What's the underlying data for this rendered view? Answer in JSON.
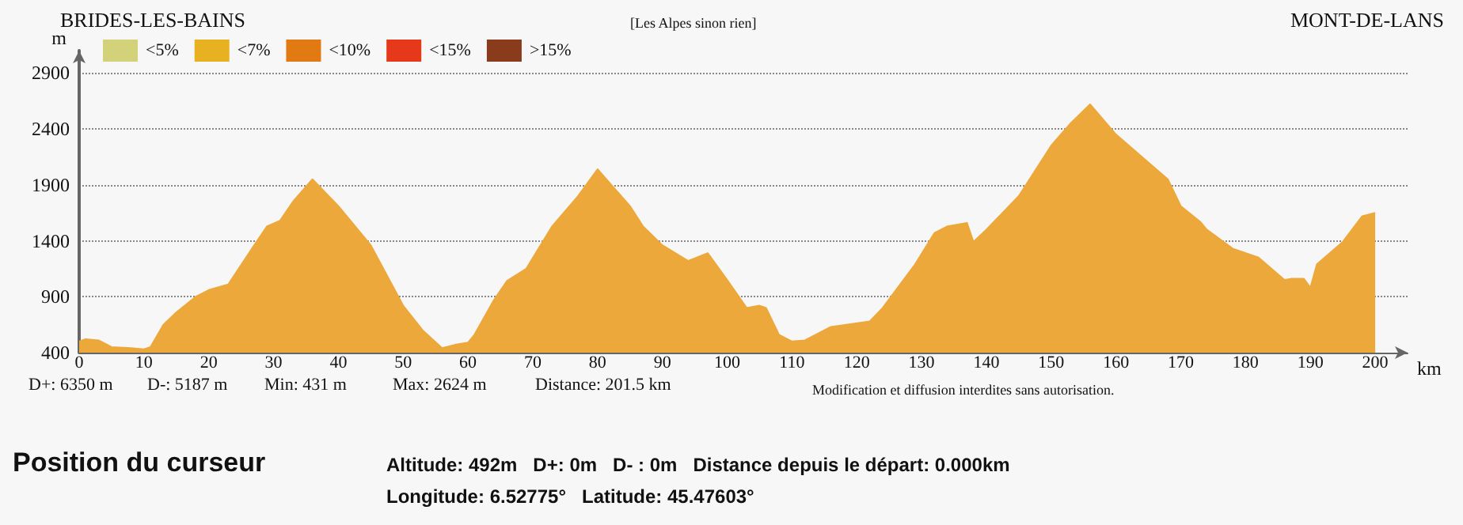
{
  "chart_data": {
    "type": "area",
    "annotations": [
      "BRIDES-LES-BAINS",
      "[Les Alpes sinon rien]",
      "MONT-DE-LANS",
      "D+: 6350 m",
      "D-: 5187 m",
      "Min: 431 m",
      "Max: 2624 m",
      "Distance: 201.5 km",
      "Modification et diffusion interdites sans autorisation.",
      "Position du curseur",
      "Altitude: 492m   D+: 0m   D- : 0m   Distance depuis le départ: 0.000km",
      "Longitude: 6.52775°   Latitude: 45.47603°"
    ],
    "xlabel": "km",
    "ylabel": "m",
    "xlim": [
      0,
      205
    ],
    "xticks": [
      0,
      10,
      20,
      30,
      40,
      50,
      60,
      70,
      80,
      90,
      100,
      110,
      120,
      130,
      140,
      150,
      160,
      170,
      180,
      190,
      200
    ],
    "ylim": [
      400,
      3100
    ],
    "yticks": [
      400,
      900,
      1400,
      1900,
      2400,
      2900
    ],
    "grid": "y",
    "legend": "top left",
    "series": [
      {
        "color": "#eca83a",
        "x": [
          0,
          1,
          3,
          5,
          8,
          10,
          11,
          13,
          15,
          18,
          20,
          23,
          27,
          29,
          31,
          33,
          36,
          40,
          45,
          50,
          53,
          56,
          58,
          60,
          61,
          64,
          66,
          69,
          73,
          77,
          80,
          85,
          87,
          90,
          94,
          97,
          100,
          103,
          105,
          106,
          108,
          110,
          112,
          116,
          122,
          124,
          129,
          132,
          134,
          137,
          138,
          140,
          145,
          150,
          153,
          156,
          160,
          165,
          168,
          170,
          173,
          174,
          178,
          182,
          186,
          187,
          189,
          190,
          191,
          195,
          198,
          200
        ],
        "values": [
          500,
          520,
          510,
          450,
          440,
          430,
          450,
          650,
          760,
          900,
          960,
          1010,
          1360,
          1530,
          1580,
          1750,
          1950,
          1710,
          1360,
          820,
          600,
          440,
          470,
          490,
          560,
          870,
          1040,
          1150,
          1530,
          1800,
          2040,
          1710,
          1530,
          1360,
          1220,
          1290,
          1050,
          800,
          820,
          800,
          560,
          500,
          510,
          630,
          680,
          800,
          1190,
          1470,
          1530,
          1560,
          1390,
          1500,
          1800,
          2250,
          2450,
          2620,
          2350,
          2100,
          1950,
          1710,
          1570,
          1500,
          1330,
          1250,
          1050,
          1060,
          1060,
          980,
          1190,
          1390,
          1620,
          1650
        ]
      },
      {
        "name": "<5%",
        "color": "#d3d27a"
      },
      {
        "name": "<7%",
        "color": "#e8b122"
      },
      {
        "name": "<10%",
        "color": "#e27a14"
      },
      {
        "name": "<15%",
        "color": "#e6381a"
      },
      {
        "name": ">15%",
        "color": "#8a3b1c"
      }
    ]
  }
}
